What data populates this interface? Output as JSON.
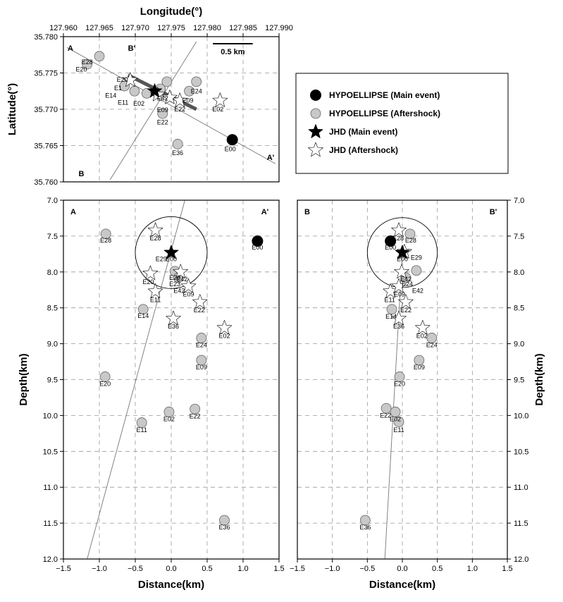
{
  "chart_data": [
    {
      "id": "map",
      "type": "scatter",
      "xlabel": "Longitude(°)",
      "ylabel": "Latitude(°)",
      "xlim": [
        127.96,
        127.99
      ],
      "ylim": [
        35.76,
        35.78
      ],
      "xticks": [
        "127.960",
        "127.965",
        "127.970",
        "127.975",
        "127.980",
        "127.985",
        "127.990"
      ],
      "yticks": [
        "35.760",
        "35.765",
        "35.770",
        "35.775",
        "35.780"
      ],
      "grid": true,
      "corner_labels": {
        "a": "A",
        "a_prime": "A'",
        "b": "B",
        "b_prime": "B'"
      },
      "scale_bar": "0.5 km",
      "profile_lines": [
        {
          "name": "A-A'",
          "from": [
            127.9605,
            35.7785
          ],
          "to": [
            127.9895,
            35.7625
          ]
        },
        {
          "name": "B-B'",
          "from": [
            127.9665,
            35.7603
          ],
          "to": [
            127.9785,
            35.7793
          ]
        }
      ],
      "fault_trace": {
        "from": [
          127.969,
          35.7747
        ],
        "to": [
          127.9785,
          35.77
        ]
      },
      "series": [
        {
          "name": "HYPOELLIPSE (Main event)",
          "marker": "circle",
          "color": "#000000",
          "points": [
            {
              "label": "E00",
              "x": 127.9835,
              "y": 35.7658
            }
          ]
        },
        {
          "name": "HYPOELLIPSE (Aftershock)",
          "marker": "circle",
          "color": "#c8c8c8",
          "points": [
            {
              "label": "E28",
              "x": 127.965,
              "y": 35.7773
            },
            {
              "label": "E20",
              "x": 127.9633,
              "y": 35.7762
            },
            {
              "label": "E14",
              "x": 127.9685,
              "y": 35.7732
            },
            {
              "label": "E11",
              "x": 127.9699,
              "y": 35.7725
            },
            {
              "label": "E24",
              "x": 127.9785,
              "y": 35.7738
            },
            {
              "label": "E09",
              "x": 127.9775,
              "y": 35.7725
            },
            {
              "label": "E22",
              "x": 127.9738,
              "y": 35.7694
            },
            {
              "label": "E36",
              "x": 127.9759,
              "y": 35.7652
            },
            {
              "label": "E42",
              "x": 127.9744,
              "y": 35.7738
            },
            {
              "label": "E02",
              "x": 127.9716,
              "y": 35.7722
            },
            {
              "label": "E29",
              "x": 127.9735,
              "y": 35.7728
            }
          ]
        },
        {
          "name": "JHD (Main event)",
          "marker": "star",
          "color": "#000000",
          "points": [
            {
              "label": "E00",
              "x": 127.9727,
              "y": 35.7725
            }
          ]
        },
        {
          "name": "JHD (Aftershock)",
          "marker": "star",
          "color": "#ffffff",
          "points": [
            {
              "label": "E02",
              "x": 127.9818,
              "y": 35.7712
            },
            {
              "label": "E20",
              "x": 127.9693,
              "y": 35.774
            },
            {
              "label": "E22",
              "x": 127.9762,
              "y": 35.7712
            },
            {
              "label": "E29",
              "x": 127.9748,
              "y": 35.7716
            },
            {
              "label": "E36",
              "x": 127.9731,
              "y": 35.772
            }
          ]
        }
      ],
      "point_labels": [
        {
          "text": "E28",
          "x": 127.9633,
          "y": 35.7765
        },
        {
          "text": "E20",
          "x": 127.9625,
          "y": 35.7755
        },
        {
          "text": "E20",
          "x": 127.9682,
          "y": 35.7741
        },
        {
          "text": "E1",
          "x": 127.9676,
          "y": 35.7729
        },
        {
          "text": "E14",
          "x": 127.9666,
          "y": 35.7719
        },
        {
          "text": "E11",
          "x": 127.9683,
          "y": 35.7709
        },
        {
          "text": "E02",
          "x": 127.9705,
          "y": 35.7708
        },
        {
          "text": "E42",
          "x": 127.9738,
          "y": 35.7715
        },
        {
          "text": "E09",
          "x": 127.9738,
          "y": 35.7699
        },
        {
          "text": "E22",
          "x": 127.9762,
          "y": 35.77
        },
        {
          "text": "E24",
          "x": 127.9785,
          "y": 35.7725
        },
        {
          "text": "E09",
          "x": 127.9773,
          "y": 35.7712
        },
        {
          "text": "E02",
          "x": 127.9815,
          "y": 35.77
        },
        {
          "text": "E22",
          "x": 127.9738,
          "y": 35.7682
        },
        {
          "text": "E36",
          "x": 127.9759,
          "y": 35.764
        },
        {
          "text": "E00",
          "x": 127.9832,
          "y": 35.7645
        }
      ]
    },
    {
      "id": "section-aa",
      "type": "scatter",
      "xlabel": "Distance(km)",
      "ylabel": "Depth(km)",
      "xlim": [
        -1.5,
        1.5
      ],
      "ylim": [
        12.0,
        7.0
      ],
      "xticks": [
        "−1.5",
        "−1.0",
        "−0.5",
        "0.0",
        "0.5",
        "1.0",
        "1.5"
      ],
      "yticks": [
        "7.0",
        "7.5",
        "8.0",
        "8.5",
        "9.0",
        "9.5",
        "10.0",
        "10.5",
        "11.0",
        "11.5",
        "12.0"
      ],
      "grid": true,
      "corner_labels": {
        "left": "A",
        "right": "A'"
      },
      "fault_line": {
        "from": [
          0.19,
          7.0
        ],
        "to": [
          -1.17,
          12.0
        ]
      },
      "uncertainty_circle": {
        "center": [
          0.0,
          7.73
        ],
        "radius_km": 0.5
      },
      "series": [
        {
          "name": "HYPOELLIPSE (Main event)",
          "marker": "circle",
          "color": "#000000",
          "points": [
            {
              "label": "E00",
              "x": 1.2,
              "y": 7.57
            }
          ]
        },
        {
          "name": "HYPOELLIPSE (Aftershock)",
          "marker": "circle",
          "color": "#c8c8c8",
          "points": [
            {
              "label": "E28",
              "x": -0.91,
              "y": 7.47
            },
            {
              "label": "E29",
              "x": 0.05,
              "y": 7.99
            },
            {
              "label": "E42",
              "x": 0.1,
              "y": 8.08
            },
            {
              "label": "E14",
              "x": -0.39,
              "y": 8.52
            },
            {
              "label": "E24",
              "x": 0.42,
              "y": 8.92
            },
            {
              "label": "E09",
              "x": 0.42,
              "y": 9.23
            },
            {
              "label": "E20",
              "x": -0.92,
              "y": 9.46
            },
            {
              "label": "E02",
              "x": -0.03,
              "y": 9.95
            },
            {
              "label": "E22",
              "x": 0.33,
              "y": 9.91
            },
            {
              "label": "E11",
              "x": -0.41,
              "y": 10.1
            },
            {
              "label": "E36",
              "x": 0.74,
              "y": 11.46
            }
          ]
        },
        {
          "name": "JHD (Main event)",
          "marker": "star",
          "color": "#000000",
          "points": [
            {
              "label": "E00",
              "x": 0.0,
              "y": 7.73
            }
          ]
        },
        {
          "name": "JHD (Aftershock)",
          "marker": "star",
          "color": "#ffffff",
          "points": [
            {
              "label": "E28",
              "x": -0.22,
              "y": 7.42
            },
            {
              "label": "E20",
              "x": -0.29,
              "y": 8.02
            },
            {
              "label": "E42",
              "x": 0.13,
              "y": 8.0
            },
            {
              "label": "E11",
              "x": -0.22,
              "y": 8.27
            },
            {
              "label": "E09",
              "x": 0.24,
              "y": 8.2
            },
            {
              "label": "E22",
              "x": 0.4,
              "y": 8.42
            },
            {
              "label": "E36",
              "x": 0.03,
              "y": 8.65
            },
            {
              "label": "E02",
              "x": 0.74,
              "y": 8.78
            }
          ]
        }
      ],
      "point_labels": [
        {
          "text": "E28",
          "x": -0.22,
          "y": 7.53
        },
        {
          "text": "E28",
          "x": -0.91,
          "y": 7.56
        },
        {
          "text": "E00",
          "x": 1.2,
          "y": 7.66
        },
        {
          "text": "E00",
          "x": 0.0,
          "y": 7.82
        },
        {
          "text": "E29",
          "x": -0.14,
          "y": 7.82
        },
        {
          "text": "E29",
          "x": 0.05,
          "y": 8.08
        },
        {
          "text": "E42",
          "x": 0.15,
          "y": 8.1
        },
        {
          "text": "E23",
          "x": 0.05,
          "y": 8.17
        },
        {
          "text": "E20",
          "x": -0.32,
          "y": 8.14
        },
        {
          "text": "E42",
          "x": 0.11,
          "y": 8.26
        },
        {
          "text": "E09",
          "x": 0.24,
          "y": 8.31
        },
        {
          "text": "E11",
          "x": -0.22,
          "y": 8.39
        },
        {
          "text": "E22",
          "x": 0.39,
          "y": 8.53
        },
        {
          "text": "E14",
          "x": -0.39,
          "y": 8.61
        },
        {
          "text": "E36",
          "x": 0.03,
          "y": 8.76
        },
        {
          "text": "E02",
          "x": 0.74,
          "y": 8.89
        },
        {
          "text": "E24",
          "x": 0.42,
          "y": 9.02
        },
        {
          "text": "E09",
          "x": 0.42,
          "y": 9.33
        },
        {
          "text": "E20",
          "x": -0.92,
          "y": 9.56
        },
        {
          "text": "E22",
          "x": 0.33,
          "y": 10.01
        },
        {
          "text": "E02",
          "x": -0.03,
          "y": 10.05
        },
        {
          "text": "E11",
          "x": -0.41,
          "y": 10.2
        },
        {
          "text": "E36",
          "x": 0.74,
          "y": 11.56
        }
      ]
    },
    {
      "id": "section-bb",
      "type": "scatter",
      "xlabel": "Distance(km)",
      "ylabel": "Depth(km)",
      "xlim": [
        -1.5,
        1.5
      ],
      "ylim": [
        12.0,
        7.0
      ],
      "xticks": [
        "−1.5",
        "−1.0",
        "−0.5",
        "0.0",
        "0.5",
        "1.0",
        "1.5"
      ],
      "yticks": [
        "7.0",
        "7.5",
        "8.0",
        "8.5",
        "9.0",
        "9.5",
        "10.0",
        "10.5",
        "11.0",
        "11.5",
        "12.0"
      ],
      "grid": true,
      "corner_labels": {
        "left": "B",
        "right": "B'"
      },
      "fault_line": {
        "from": [
          0.0,
          7.75
        ],
        "to": [
          -0.25,
          12.0
        ]
      },
      "uncertainty_circle": {
        "center": [
          0.0,
          7.73
        ],
        "radius_km": 0.5
      },
      "series": [
        {
          "name": "HYPOELLIPSE (Main event)",
          "marker": "circle",
          "color": "#000000",
          "points": [
            {
              "label": "E00",
              "x": -0.17,
              "y": 7.57
            }
          ]
        },
        {
          "name": "HYPOELLIPSE (Aftershock)",
          "marker": "circle",
          "color": "#c8c8c8",
          "points": [
            {
              "label": "E28",
              "x": 0.11,
              "y": 7.47
            },
            {
              "label": "E29",
              "x": 0.2,
              "y": 7.98
            },
            {
              "label": "E42",
              "x": 0.05,
              "y": 8.08
            },
            {
              "label": "E14",
              "x": -0.15,
              "y": 8.52
            },
            {
              "label": "E24",
              "x": 0.42,
              "y": 8.92
            },
            {
              "label": "E09",
              "x": 0.24,
              "y": 9.23
            },
            {
              "label": "E20",
              "x": -0.04,
              "y": 9.46
            },
            {
              "label": "E22",
              "x": -0.23,
              "y": 9.9
            },
            {
              "label": "E02",
              "x": -0.1,
              "y": 9.95
            },
            {
              "label": "E11",
              "x": -0.05,
              "y": 10.09
            },
            {
              "label": "E36",
              "x": -0.53,
              "y": 11.46
            }
          ]
        },
        {
          "name": "JHD (Main event)",
          "marker": "star",
          "color": "#000000",
          "points": [
            {
              "label": "E00",
              "x": 0.0,
              "y": 7.73
            }
          ]
        },
        {
          "name": "JHD (Aftershock)",
          "marker": "star",
          "color": "#ffffff",
          "points": [
            {
              "label": "E28",
              "x": -0.05,
              "y": 7.42
            },
            {
              "label": "E29",
              "x": 0.03,
              "y": 7.72
            },
            {
              "label": "E20",
              "x": -0.01,
              "y": 8.0
            },
            {
              "label": "E11",
              "x": -0.17,
              "y": 8.27
            },
            {
              "label": "E09",
              "x": -0.05,
              "y": 8.2
            },
            {
              "label": "E22",
              "x": 0.05,
              "y": 8.42
            },
            {
              "label": "E36",
              "x": -0.05,
              "y": 8.65
            },
            {
              "label": "E02",
              "x": 0.29,
              "y": 8.78
            }
          ]
        }
      ],
      "point_labels": [
        {
          "text": "E28",
          "x": -0.06,
          "y": 7.53
        },
        {
          "text": "E28",
          "x": 0.12,
          "y": 7.56
        },
        {
          "text": "E00",
          "x": -0.17,
          "y": 7.66
        },
        {
          "text": "E29",
          "x": 0.2,
          "y": 7.8
        },
        {
          "text": "E00",
          "x": 0.0,
          "y": 7.82
        },
        {
          "text": "E42",
          "x": 0.05,
          "y": 8.1
        },
        {
          "text": "E24",
          "x": 0.07,
          "y": 8.17
        },
        {
          "text": "E42",
          "x": 0.22,
          "y": 8.26
        },
        {
          "text": "E09",
          "x": -0.04,
          "y": 8.31
        },
        {
          "text": "E11",
          "x": -0.18,
          "y": 8.39
        },
        {
          "text": "E22",
          "x": 0.05,
          "y": 8.53
        },
        {
          "text": "E14",
          "x": -0.16,
          "y": 8.62
        },
        {
          "text": "E36",
          "x": -0.05,
          "y": 8.76
        },
        {
          "text": "E02",
          "x": 0.28,
          "y": 8.89
        },
        {
          "text": "E24",
          "x": 0.42,
          "y": 9.02
        },
        {
          "text": "E09",
          "x": 0.24,
          "y": 9.33
        },
        {
          "text": "E20",
          "x": -0.04,
          "y": 9.56
        },
        {
          "text": "E22",
          "x": -0.24,
          "y": 10.0
        },
        {
          "text": "E02",
          "x": -0.1,
          "y": 10.05
        },
        {
          "text": "E11",
          "x": -0.05,
          "y": 10.2
        },
        {
          "text": "E36",
          "x": -0.53,
          "y": 11.56
        }
      ]
    }
  ],
  "legend": {
    "items": [
      {
        "label": "HYPOELLIPSE (Main event)",
        "marker": "circle",
        "color": "#000000"
      },
      {
        "label": "HYPOELLIPSE (Aftershock)",
        "marker": "circle",
        "color": "#c8c8c8"
      },
      {
        "label": "JHD (Main event)",
        "marker": "star",
        "color": "#000000"
      },
      {
        "label": "JHD (Aftershock)",
        "marker": "star",
        "color": "#ffffff"
      }
    ]
  }
}
